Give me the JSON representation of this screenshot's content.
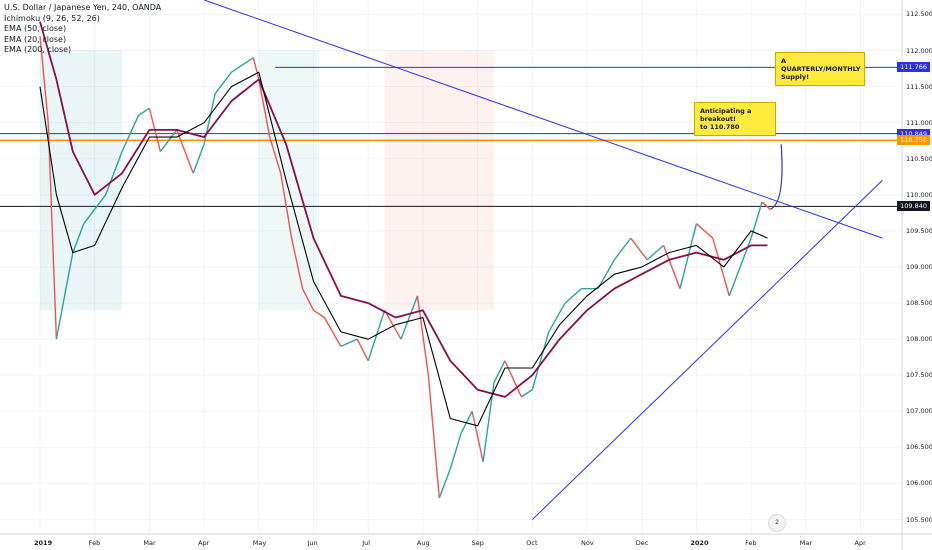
{
  "legend": {
    "symbol": "U.S. Dollar / Japanese Yen, 240, OANDA",
    "ichimoku": "Ichimoku (9, 26, 52, 26)",
    "ema50": "EMA (50, close)",
    "ema20": "EMA (20, close)",
    "ema200": "EMA (200, close)"
  },
  "callouts": {
    "breakout": "Anticipating a breakout!\nto 110.780",
    "supply": "A QUARTERLY/MONTHLY\nSupply!"
  },
  "badge": "2",
  "colors": {
    "up": "#26a69a",
    "down": "#ef5350",
    "ema_short": "#000000",
    "ema_long": "#880e4f",
    "trendline": "#2a2ff0",
    "supply_line": "#ff9800"
  },
  "chart_data": {
    "type": "line",
    "title": "U.S. Dollar / Japanese Yen, 240, OANDA",
    "ylim": [
      105.3,
      112.7
    ],
    "y_ticks": [
      105.5,
      106.0,
      106.5,
      107.0,
      107.5,
      108.0,
      108.5,
      109.0,
      109.5,
      110.0,
      110.5,
      111.0,
      111.5,
      112.0,
      112.5
    ],
    "y_tick_labels": [
      "105.500",
      "106.000",
      "106.500",
      "107.000",
      "107.500",
      "108.000",
      "108.500",
      "109.000",
      "109.500",
      "110.000",
      "110.500",
      "111.000",
      "111.500",
      "112.000",
      "112.500"
    ],
    "x_labels": [
      "2019",
      "Feb",
      "Mar",
      "Apr",
      "May",
      "Jun",
      "Jul",
      "Aug",
      "Sep",
      "Oct",
      "Nov",
      "Dec",
      "2020",
      "Feb",
      "Mar",
      "Apr"
    ],
    "x_label_months": [
      0,
      1,
      2,
      3,
      4,
      5,
      6,
      7,
      8,
      9,
      10,
      11,
      12,
      13,
      14,
      15
    ],
    "price_series": {
      "name": "USDJPY",
      "months": [
        0,
        0.15,
        0.3,
        0.45,
        0.6,
        0.8,
        1.0,
        1.2,
        1.5,
        1.8,
        2.0,
        2.2,
        2.5,
        2.8,
        3.0,
        3.2,
        3.5,
        3.7,
        3.9,
        4.0,
        4.2,
        4.4,
        4.6,
        4.8,
        5.0,
        5.2,
        5.5,
        5.8,
        6.0,
        6.3,
        6.6,
        6.9,
        7.1,
        7.3,
        7.5,
        7.7,
        7.9,
        8.1,
        8.3,
        8.5,
        8.8,
        9.0,
        9.3,
        9.6,
        9.9,
        10.2,
        10.5,
        10.8,
        11.1,
        11.4,
        11.7,
        12.0,
        12.3,
        12.6,
        12.8,
        13.0,
        13.2,
        13.35
      ],
      "values": [
        112.2,
        111.0,
        108.0,
        108.6,
        109.2,
        109.6,
        109.8,
        110.0,
        110.6,
        111.1,
        111.2,
        110.6,
        110.9,
        110.3,
        110.7,
        111.4,
        111.7,
        111.8,
        111.9,
        111.6,
        110.8,
        110.3,
        109.4,
        108.7,
        108.4,
        108.3,
        107.9,
        108.0,
        107.7,
        108.4,
        108.0,
        108.6,
        107.5,
        105.8,
        106.2,
        106.7,
        107.0,
        106.3,
        107.4,
        107.7,
        107.2,
        107.3,
        108.1,
        108.5,
        108.7,
        108.7,
        109.1,
        109.4,
        109.1,
        109.3,
        108.7,
        109.6,
        109.4,
        108.6,
        109.0,
        109.4,
        109.9,
        109.8
      ]
    },
    "ema_short": {
      "months": [
        0,
        0.3,
        0.6,
        1.0,
        1.5,
        2.0,
        2.5,
        3.0,
        3.5,
        4.0,
        4.5,
        5.0,
        5.5,
        6.0,
        6.5,
        7.0,
        7.5,
        8.0,
        8.5,
        9.0,
        9.5,
        10.0,
        10.5,
        11.0,
        11.5,
        12.0,
        12.5,
        13.0,
        13.3
      ],
      "values": [
        111.5,
        110.0,
        109.2,
        109.3,
        110.1,
        110.8,
        110.8,
        111.0,
        111.5,
        111.7,
        110.2,
        108.8,
        108.1,
        108.0,
        108.2,
        108.3,
        106.9,
        106.8,
        107.6,
        107.6,
        108.2,
        108.6,
        108.9,
        109.0,
        109.2,
        109.3,
        109.0,
        109.5,
        109.4
      ]
    },
    "ema_long": {
      "months": [
        0,
        0.3,
        0.6,
        1.0,
        1.5,
        2.0,
        2.5,
        3.0,
        3.5,
        4.0,
        4.5,
        5.0,
        5.5,
        6.0,
        6.5,
        7.0,
        7.5,
        8.0,
        8.5,
        9.0,
        9.5,
        10.0,
        10.5,
        11.0,
        11.5,
        12.0,
        12.5,
        13.0,
        13.3
      ],
      "values": [
        112.4,
        111.6,
        110.6,
        110.0,
        110.3,
        110.9,
        110.9,
        110.8,
        111.3,
        111.6,
        110.7,
        109.4,
        108.6,
        108.5,
        108.3,
        108.4,
        107.7,
        107.3,
        107.2,
        107.5,
        108.0,
        108.4,
        108.7,
        108.9,
        109.1,
        109.2,
        109.1,
        109.3,
        109.3
      ]
    },
    "horizontal_levels": [
      {
        "value": 111.766,
        "label": "111.766",
        "color": "#2a2ff0"
      },
      {
        "value": 110.849,
        "label": "110.849",
        "color": "#2a2ff0"
      },
      {
        "value": 110.755,
        "label": "110.755",
        "color": "#ff9800"
      },
      {
        "value": 109.84,
        "label": "109.840",
        "color": "#131722"
      }
    ],
    "trendlines": [
      {
        "from": [
          3.0,
          112.7
        ],
        "to": [
          15.4,
          109.4
        ]
      },
      {
        "from": [
          9.0,
          105.5
        ],
        "to": [
          15.4,
          110.2
        ]
      }
    ],
    "projection": {
      "from": [
        13.35,
        109.8
      ],
      "to": [
        13.55,
        110.7
      ]
    },
    "cloud_bands": [
      {
        "from_month": 0,
        "to_month": 1.5,
        "color": "rgba(38,166,154,0.10)"
      },
      {
        "from_month": 4.0,
        "to_month": 5.1,
        "color": "rgba(38,166,154,0.08)"
      },
      {
        "from_month": 6.3,
        "to_month": 8.3,
        "color": "rgba(239,83,80,0.08)"
      }
    ],
    "grid": true
  }
}
